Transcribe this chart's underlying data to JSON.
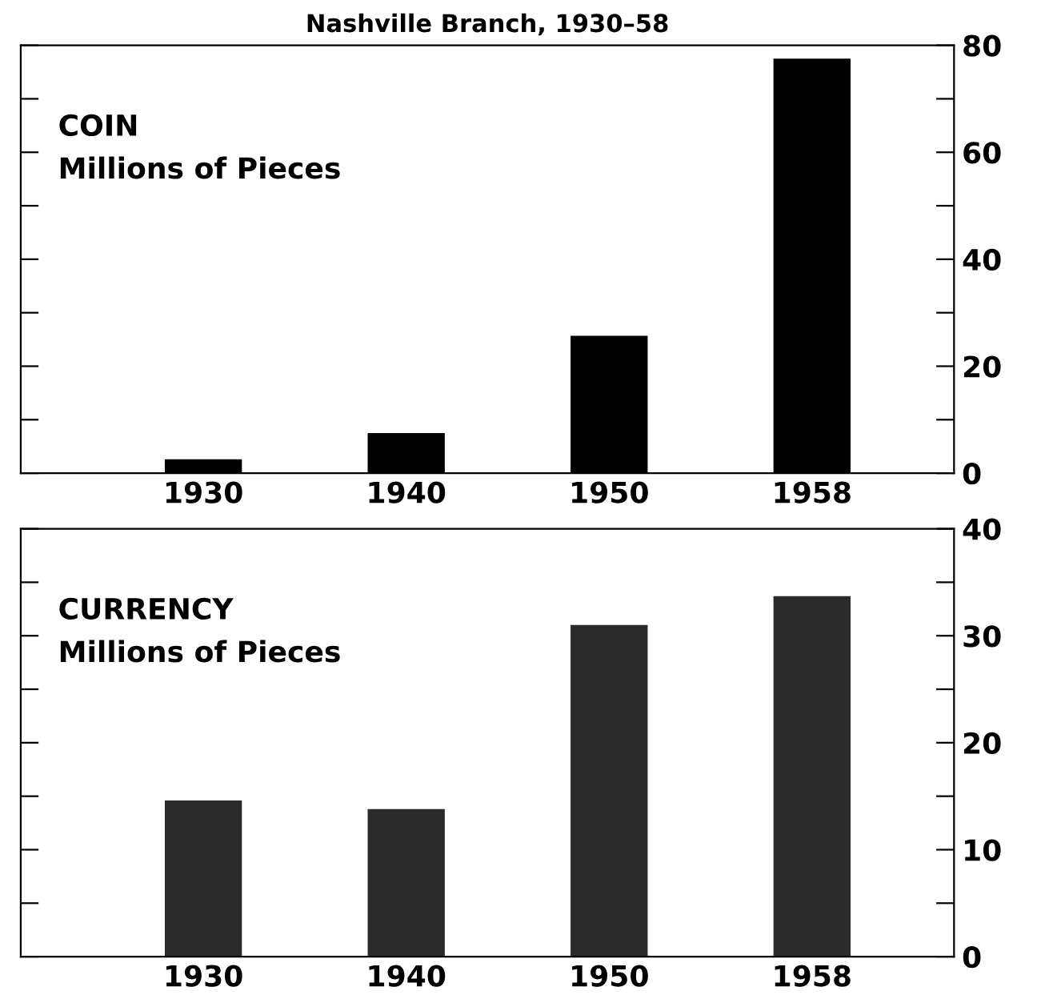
{
  "chart_data": [
    {
      "type": "bar",
      "title": "Nashville Branch, 1930–58",
      "annotations": [
        "COIN",
        "Millions of Pieces"
      ],
      "categories": [
        "1930",
        "1940",
        "1950",
        "1958"
      ],
      "values": [
        2.6,
        7.5,
        25.7,
        77.5
      ],
      "color": "#000000",
      "ylim": [
        0,
        80
      ],
      "yticks": [
        0,
        {
          "value": 10,
          "label": null
        },
        20,
        {
          "value": 30,
          "label": null
        },
        40,
        {
          "value": 50,
          "label": null
        },
        60,
        {
          "value": 70,
          "label": null
        },
        80
      ],
      "grid": false
    },
    {
      "type": "bar",
      "annotations": [
        "CURRENCY",
        "Millions of Pieces"
      ],
      "categories": [
        "1930",
        "1940",
        "1950",
        "1958"
      ],
      "values": [
        14.6,
        13.8,
        31.0,
        33.7
      ],
      "color": "#2b2b2b",
      "ylim": [
        0,
        40
      ],
      "yticks": [
        0,
        {
          "value": 5,
          "label": null
        },
        10,
        {
          "value": 15,
          "label": null
        },
        20,
        {
          "value": 25,
          "label": null
        },
        30,
        {
          "value": 35,
          "label": null
        },
        40
      ],
      "grid": false
    }
  ]
}
